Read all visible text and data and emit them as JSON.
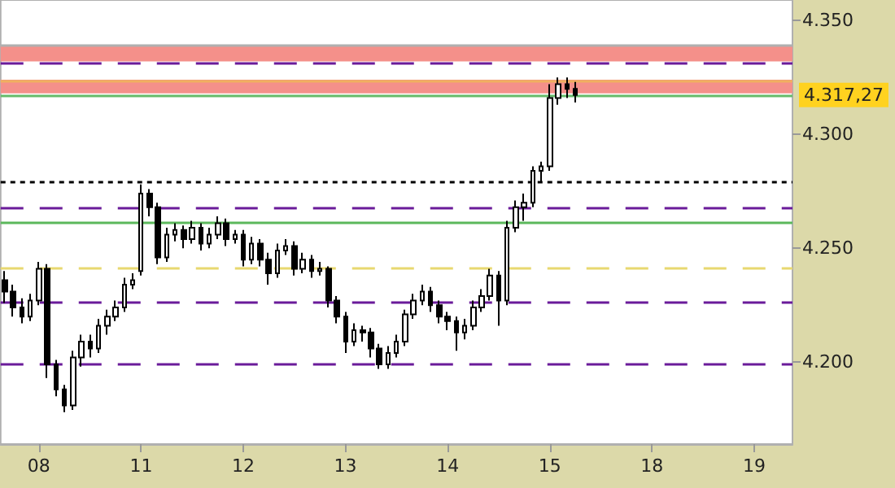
{
  "chart_data": {
    "type": "candlestick",
    "categories": [
      null,
      null,
      null,
      null,
      "08",
      null,
      null,
      null,
      null,
      null,
      null,
      null,
      null,
      null,
      null,
      null,
      "11",
      null,
      null,
      null,
      null,
      null,
      null,
      null,
      null,
      null,
      null,
      null,
      "12",
      null,
      null,
      null,
      null,
      null,
      null,
      null,
      null,
      null,
      null,
      null,
      "13",
      null,
      null,
      null,
      null,
      null,
      null,
      null,
      null,
      null,
      null,
      null,
      "14",
      null,
      null,
      null,
      null,
      null,
      null,
      null,
      null,
      null,
      null,
      null,
      "15",
      null,
      null,
      null,
      null,
      null,
      null,
      null,
      null,
      null,
      null,
      null,
      "18",
      null,
      null,
      null,
      null,
      null,
      null,
      null,
      null,
      null,
      null,
      null,
      "19",
      null,
      null,
      null,
      null
    ],
    "ohlc": [
      [
        4236,
        4240,
        4226,
        4231
      ],
      [
        4231,
        4234,
        4220,
        4224
      ],
      [
        4224,
        4228,
        4217,
        4220
      ],
      [
        4220,
        4230,
        4218,
        4227
      ],
      [
        4227,
        4244,
        4225,
        4241
      ],
      [
        4241,
        4243,
        4193,
        4199
      ],
      [
        4199,
        4201,
        4185,
        4188
      ],
      [
        4188,
        4190,
        4178,
        4181
      ],
      [
        4181,
        4205,
        4179,
        4202
      ],
      [
        4202,
        4212,
        4198,
        4209
      ],
      [
        4209,
        4212,
        4202,
        4206
      ],
      [
        4206,
        4219,
        4204,
        4216
      ],
      [
        4216,
        4223,
        4212,
        4220
      ],
      [
        4220,
        4227,
        4218,
        4224
      ],
      [
        4224,
        4237,
        4222,
        4234
      ],
      [
        4234,
        4239,
        4232,
        4236
      ],
      [
        4240,
        4278,
        4238,
        4274
      ],
      [
        4274,
        4276,
        4264,
        4268
      ],
      [
        4268,
        4270,
        4243,
        4246
      ],
      [
        4246,
        4259,
        4244,
        4256
      ],
      [
        4256,
        4261,
        4253,
        4258
      ],
      [
        4258,
        4260,
        4250,
        4254
      ],
      [
        4254,
        4262,
        4252,
        4259
      ],
      [
        4259,
        4261,
        4249,
        4252
      ],
      [
        4252,
        4259,
        4250,
        4256
      ],
      [
        4256,
        4264,
        4254,
        4261
      ],
      [
        4261,
        4263,
        4251,
        4254
      ],
      [
        4254,
        4258,
        4252,
        4256
      ],
      [
        4256,
        4258,
        4242,
        4245
      ],
      [
        4245,
        4255,
        4243,
        4252
      ],
      [
        4252,
        4254,
        4242,
        4245
      ],
      [
        4245,
        4248,
        4234,
        4239
      ],
      [
        4239,
        4252,
        4237,
        4249
      ],
      [
        4249,
        4254,
        4247,
        4251
      ],
      [
        4251,
        4253,
        4238,
        4241
      ],
      [
        4241,
        4248,
        4239,
        4245
      ],
      [
        4245,
        4247,
        4237,
        4240
      ],
      [
        4240,
        4244,
        4238,
        4241
      ],
      [
        4241,
        4242,
        4224,
        4227
      ],
      [
        4227,
        4229,
        4217,
        4220
      ],
      [
        4220,
        4222,
        4204,
        4209
      ],
      [
        4209,
        4217,
        4207,
        4214
      ],
      [
        4214,
        4216,
        4209,
        4213
      ],
      [
        4213,
        4215,
        4202,
        4206
      ],
      [
        4206,
        4208,
        4197,
        4199
      ],
      [
        4199,
        4207,
        4197,
        4204
      ],
      [
        4204,
        4212,
        4202,
        4209
      ],
      [
        4209,
        4223,
        4207,
        4221
      ],
      [
        4221,
        4230,
        4219,
        4227
      ],
      [
        4227,
        4234,
        4225,
        4231
      ],
      [
        4231,
        4233,
        4222,
        4225
      ],
      [
        4225,
        4227,
        4217,
        4220
      ],
      [
        4220,
        4222,
        4214,
        4218
      ],
      [
        4218,
        4220,
        4205,
        4213
      ],
      [
        4213,
        4219,
        4210,
        4216
      ],
      [
        4216,
        4227,
        4214,
        4224
      ],
      [
        4224,
        4232,
        4222,
        4229
      ],
      [
        4229,
        4241,
        4227,
        4238
      ],
      [
        4238,
        4240,
        4216,
        4227
      ],
      [
        4227,
        4262,
        4225,
        4259
      ],
      [
        4259,
        4271,
        4257,
        4268
      ],
      [
        4268,
        4274,
        4262,
        4270
      ],
      [
        4270,
        4286,
        4268,
        4284
      ],
      [
        4284,
        4288,
        4279,
        4286
      ],
      [
        4286,
        4322,
        4284,
        4316
      ],
      [
        4316,
        4325,
        4313,
        4322
      ],
      [
        4322,
        4325,
        4316,
        4320
      ],
      [
        4320,
        4323,
        4314,
        4317.27
      ],
      null,
      null,
      null,
      null,
      null,
      null,
      null,
      null,
      null,
      null,
      null,
      null,
      null,
      null,
      null,
      null,
      null,
      null,
      null,
      null,
      null,
      null,
      null,
      null,
      null
    ],
    "color": "#000000",
    "ylim": [
      4164,
      4359
    ],
    "yticks": [
      {
        "value": 4200,
        "label": "4.200"
      },
      {
        "value": 4250,
        "label": "4.250"
      },
      {
        "value": 4300,
        "label": "4.300"
      },
      {
        "value": 4350,
        "label": "4.350"
      }
    ],
    "ref_lines": [
      {
        "axis": "y",
        "value": 4339,
        "label": null,
        "color": "#b0b0b0",
        "line_style": "solid"
      },
      {
        "axis": "y",
        "value": 4331,
        "label": null,
        "color": "#6a1b9a",
        "line_style": "dashed"
      },
      {
        "axis": "y",
        "value": 4323.6,
        "label": null,
        "color": "#f0b060",
        "line_style": "solid"
      },
      {
        "axis": "y",
        "value": 4317.27,
        "label": "4.317,27",
        "color": "#66bb6a",
        "line_style": "solid"
      },
      {
        "axis": "y",
        "value": 4279,
        "label": null,
        "color": "#000000",
        "line_style": "dotted"
      },
      {
        "axis": "y",
        "value": 4268,
        "label": null,
        "color": "#6a1b9a",
        "line_style": "dashed"
      },
      {
        "axis": "y",
        "value": 4261,
        "label": null,
        "color": "#5cb85c",
        "line_style": "solid"
      },
      {
        "axis": "y",
        "value": 4241,
        "label": null,
        "color": "#e8d870",
        "line_style": "dashed"
      },
      {
        "axis": "y",
        "value": 4226,
        "label": null,
        "color": "#6a1b9a",
        "line_style": "dashed"
      },
      {
        "axis": "y",
        "value": 4199,
        "label": null,
        "color": "#6a1b9a",
        "line_style": "dashed"
      }
    ],
    "bands": [
      {
        "axis": "y",
        "from": 4332,
        "to": 4339,
        "label": null,
        "color": "#f4908a"
      },
      {
        "axis": "y",
        "from": 4318,
        "to": 4324,
        "label": null,
        "color": "#f4908a"
      }
    ],
    "grid": false
  }
}
